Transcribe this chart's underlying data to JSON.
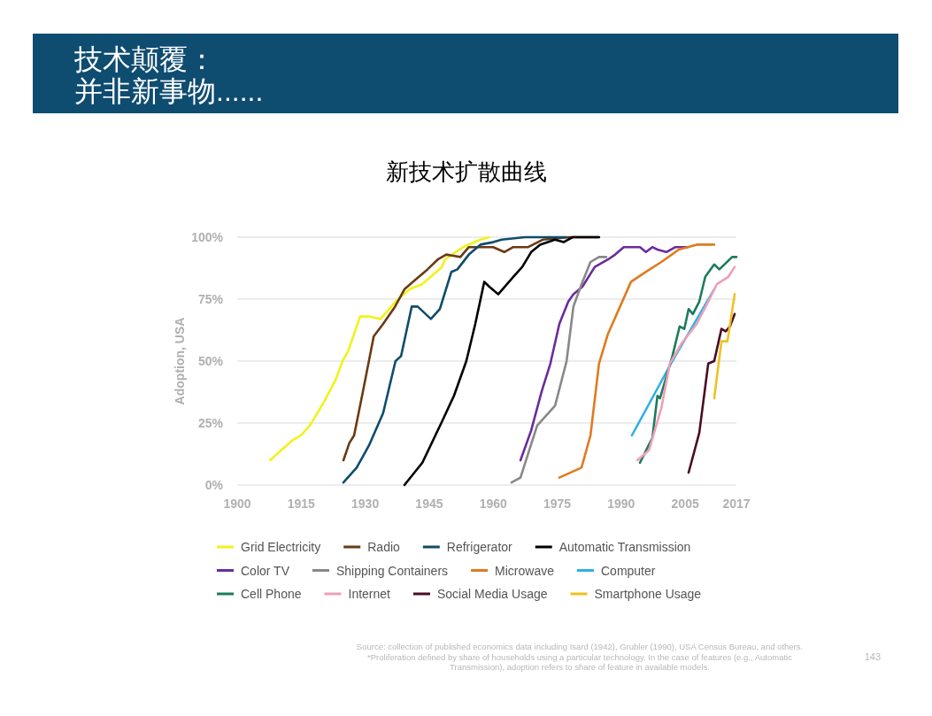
{
  "chart_data": {
    "type": "line",
    "title": "技术颠覆：",
    "subtitle": "并非新事物......",
    "ylabel": "Adoption, USA",
    "xlim": [
      1900,
      2017
    ],
    "xticks": [
      1900,
      1915,
      1930,
      1945,
      1960,
      1975,
      1990,
      2005,
      2017
    ],
    "ylim": [
      0,
      100
    ],
    "yticks": [
      {
        "value": 0,
        "label": "0%"
      },
      {
        "value": 25,
        "label": "25%"
      },
      {
        "value": 50,
        "label": "50%"
      },
      {
        "value": 75,
        "label": "75%"
      },
      {
        "value": 100,
        "label": "100%"
      }
    ],
    "grid": "y",
    "legend": "bottom",
    "series": [
      {
        "name": "Grid Electricity",
        "color": "#f2f21a",
        "x": [
          1907.7,
          1912.9,
          1914.9,
          1917,
          1920.5,
          1923.2,
          1924.7,
          1926,
          1928.8,
          1931,
          1933.6,
          1937.1,
          1940.4,
          1943.3,
          1946,
          1948,
          1948.7,
          1952.9,
          1957,
          1959
        ],
        "values": [
          10,
          18,
          20,
          24,
          34,
          43,
          50,
          54,
          68,
          68,
          67,
          74,
          79,
          81,
          85,
          88,
          91,
          96,
          99,
          100
        ]
      },
      {
        "name": "Radio",
        "color": "#6b3a12",
        "x": [
          1924.9,
          1926.3,
          1927.4,
          1929.5,
          1932,
          1934.2,
          1937,
          1939.2,
          1941.9,
          1944.6,
          1947,
          1949,
          1952.3,
          1954.3,
          1960,
          1962.6,
          1964.7,
          1968.2,
          1971.6,
          1977.8,
          1984.8
        ],
        "values": [
          10,
          17,
          20,
          38,
          60,
          65,
          72,
          79,
          83,
          87,
          91,
          93,
          92,
          96,
          96,
          94,
          96,
          96,
          99,
          100,
          100
        ]
      },
      {
        "name": "Refrigerator",
        "color": "#0f4c6b",
        "x": [
          1924.9,
          1928,
          1930.9,
          1934.2,
          1937.1,
          1938.4,
          1940.9,
          1942.3,
          1945.4,
          1947.5,
          1950.2,
          1951.6,
          1954.3,
          1957,
          1960,
          1962,
          1967.4,
          1977.2
        ],
        "values": [
          1,
          7,
          16,
          29,
          50,
          52,
          72,
          72,
          67,
          71,
          86,
          87,
          93,
          97,
          98,
          99,
          100,
          100
        ]
      },
      {
        "name": "Automatic Transmission",
        "color": "#000000",
        "x": [
          1939.2,
          1943.4,
          1948.1,
          1950.8,
          1953.7,
          1955.8,
          1957.9,
          1959.1,
          1961.2,
          1964.7,
          1966.8,
          1968.9,
          1971,
          1974.5,
          1976.5,
          1978.6,
          1984.8
        ],
        "values": [
          0,
          9,
          26,
          36,
          50,
          65,
          82,
          80,
          77,
          84,
          88,
          94,
          97,
          99,
          98,
          100,
          100
        ]
      },
      {
        "name": "Color TV",
        "color": "#6a2c9c",
        "x": [
          1966.4,
          1968.9,
          1971.4,
          1973.4,
          1975.5,
          1977.6,
          1978.8,
          1980.9,
          1983.8,
          1986.9,
          1988.6,
          1990.6,
          1992.3,
          1994.4,
          1995.8,
          1997.3,
          1998.5,
          2000.6,
          2002.7,
          2004.5,
          2005.6
        ],
        "values": [
          10,
          22,
          38,
          49,
          65,
          74,
          77,
          80,
          88,
          91,
          93,
          96,
          96,
          96,
          94,
          96,
          95,
          94,
          96,
          96,
          96
        ]
      },
      {
        "name": "Shipping Containers",
        "color": "#888888",
        "x": [
          1964.3,
          1966.4,
          1970.3,
          1974.5,
          1977.2,
          1978.8,
          1980.7,
          1982.8,
          1984.8,
          1986.5
        ],
        "values": [
          1,
          3,
          24,
          32,
          50,
          72,
          81,
          90,
          92,
          92
        ]
      },
      {
        "name": "Microwave",
        "color": "#e07b1f",
        "x": [
          1975.5,
          1980.7,
          1982.8,
          1984.8,
          1986.9,
          1992.3,
          1995.8,
          1999.4,
          2003.5,
          2007.7,
          2011.8
        ],
        "values": [
          3,
          7,
          20,
          49,
          61,
          82,
          86,
          90,
          95,
          97,
          97
        ]
      },
      {
        "name": "Computer",
        "color": "#2eb0e4",
        "x": [
          1992.5,
          2002,
          2011.8
        ],
        "values": [
          20,
          50,
          79
        ]
      },
      {
        "name": "Cell Phone",
        "color": "#1e7b5a",
        "x": [
          1994.4,
          1997.3,
          1998.5,
          1999.1,
          2002,
          2003.7,
          2004.8,
          2005.8,
          2006.8,
          2008.3,
          2009.7,
          2011.8,
          2013,
          2016,
          2017
        ],
        "values": [
          9,
          19,
          36,
          35,
          52,
          64,
          63,
          71,
          69,
          74,
          84,
          89,
          87,
          92,
          92
        ]
      },
      {
        "name": "Internet",
        "color": "#ee9fb8",
        "x": [
          1993.8,
          1996.5,
          1999.4,
          2001.4,
          2004.1,
          2007.7,
          2010.4,
          2012.4,
          2015.1,
          2016.6
        ],
        "values": [
          10,
          14,
          31,
          49,
          57,
          65,
          74,
          81,
          84,
          88
        ]
      },
      {
        "name": "Social Media Usage",
        "color": "#4a0d25",
        "x": [
          2005.8,
          2008.3,
          2010.4,
          2011.8,
          2013.5,
          2014.5,
          2015.5,
          2016.6
        ],
        "values": [
          5,
          21,
          49,
          50,
          63,
          62,
          64,
          69
        ]
      },
      {
        "name": "Smartphone Usage",
        "color": "#f0c020",
        "x": [
          2011.8,
          2013.5,
          2014.9,
          2016.6
        ],
        "values": [
          35,
          58,
          58,
          77
        ]
      }
    ],
    "annotations": [
      "新技术扩散曲线",
      "Source: collection of published economics data including Isard (1942), Grubler (1990), USA Census Bureau, and others. *Proliferation defined by share of households using a particular technology. In the case of features (e.g., Automatic Transmission), adoption refers to share of feature in available models.",
      "143"
    ]
  }
}
